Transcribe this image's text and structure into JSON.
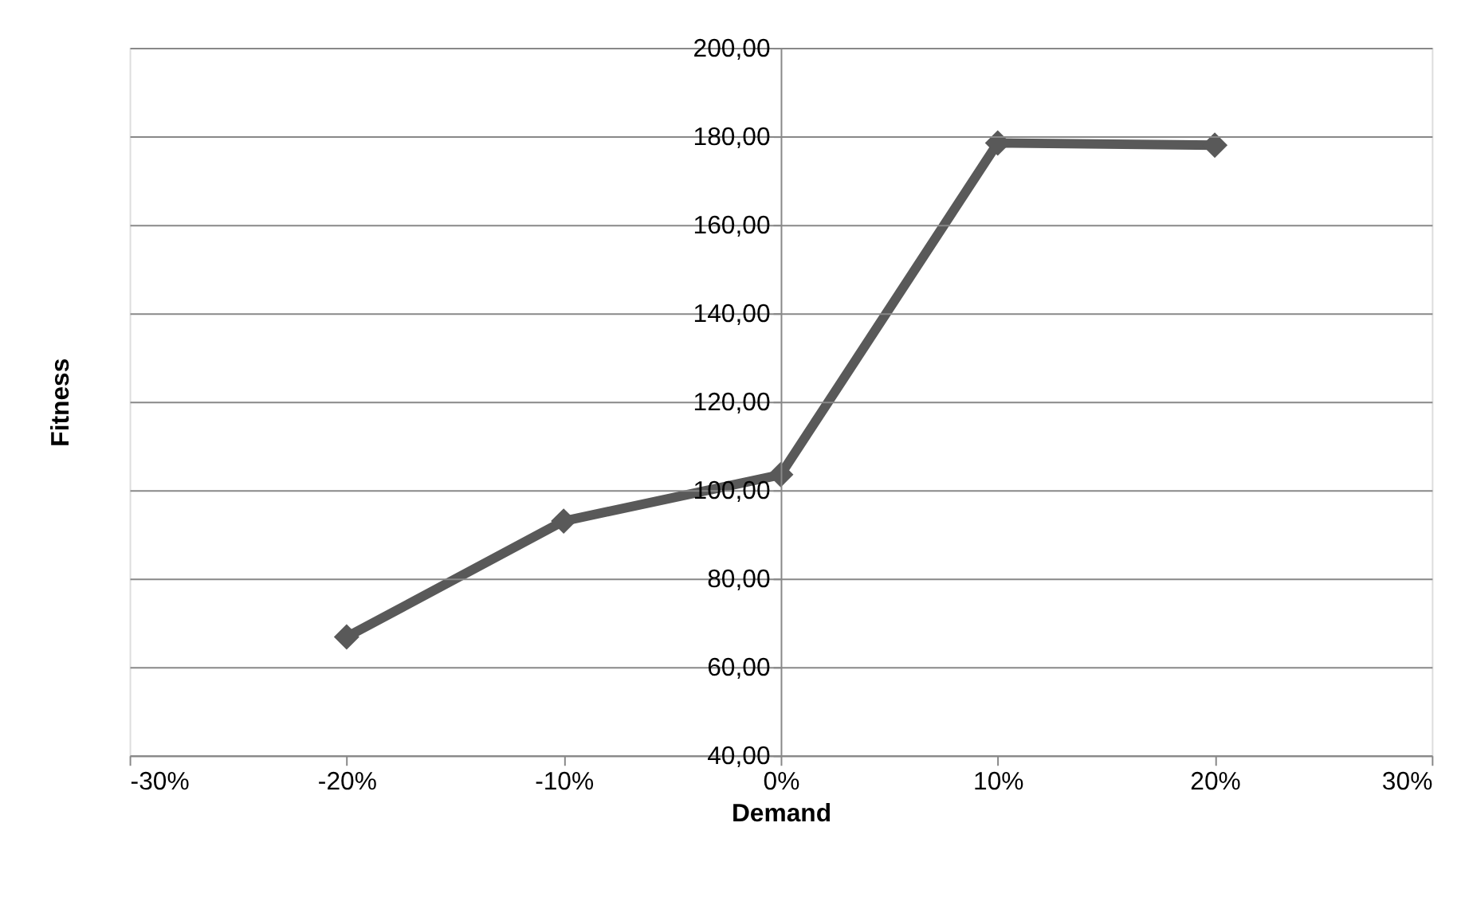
{
  "chart_data": {
    "type": "line",
    "xlabel": "Demand",
    "ylabel": "Fitness",
    "x": [
      -20,
      -10,
      0,
      10,
      20
    ],
    "series": [
      {
        "color": "#595959",
        "values": [
          66.8,
          93.0,
          103.5,
          178.5,
          178.0
        ]
      }
    ],
    "xlim": [
      -30,
      30
    ],
    "xticks": [
      {
        "value": -30,
        "label": "-30%"
      },
      {
        "value": -20,
        "label": "-20%"
      },
      {
        "value": -10,
        "label": "-10%"
      },
      {
        "value": 0,
        "label": "0%"
      },
      {
        "value": 10,
        "label": "10%"
      },
      {
        "value": 20,
        "label": "20%"
      },
      {
        "value": 30,
        "label": "30%"
      }
    ],
    "ylim": [
      40,
      200
    ],
    "yticks": [
      {
        "value": 40,
        "label": "40,00"
      },
      {
        "value": 60,
        "label": "60,00"
      },
      {
        "value": 80,
        "label": "80,00"
      },
      {
        "value": 100,
        "label": "100,00"
      },
      {
        "value": 120,
        "label": "120,00"
      },
      {
        "value": 140,
        "label": "140,00"
      },
      {
        "value": 160,
        "label": "160,00"
      },
      {
        "value": 180,
        "label": "180,00"
      },
      {
        "value": 200,
        "label": "200,00"
      }
    ],
    "grid": "y",
    "marker": "diamond",
    "line_style": "solid"
  }
}
